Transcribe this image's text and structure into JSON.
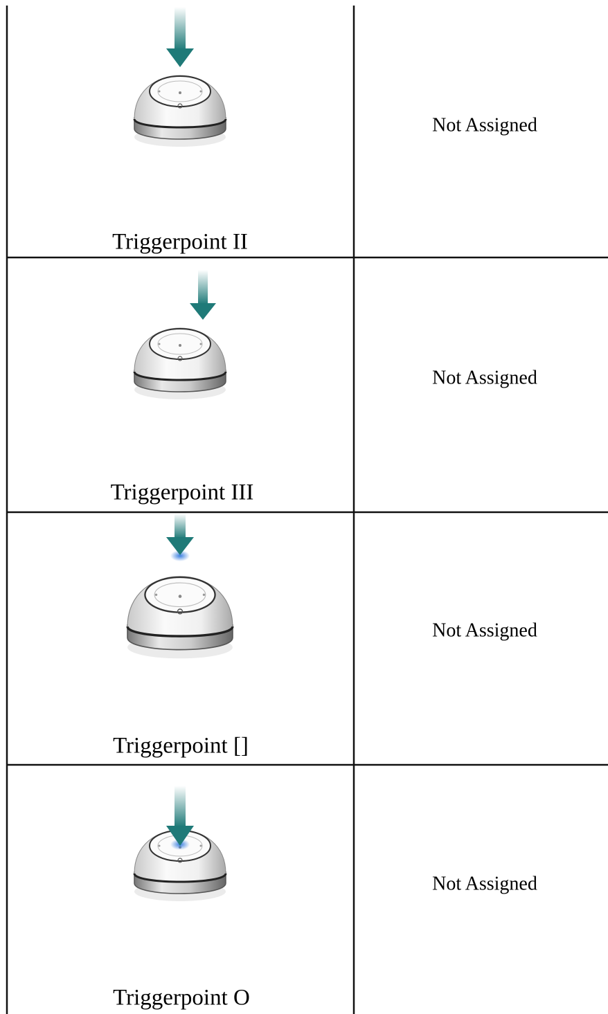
{
  "table": {
    "rows": [
      {
        "trigger": "Triggerpoint II",
        "assignment": "Not Assigned"
      },
      {
        "trigger": "Triggerpoint III",
        "assignment": "Not Assigned"
      },
      {
        "trigger": "Triggerpoint []",
        "assignment": "Not Assigned"
      },
      {
        "trigger": "Triggerpoint O",
        "assignment": "Not Assigned"
      }
    ]
  }
}
